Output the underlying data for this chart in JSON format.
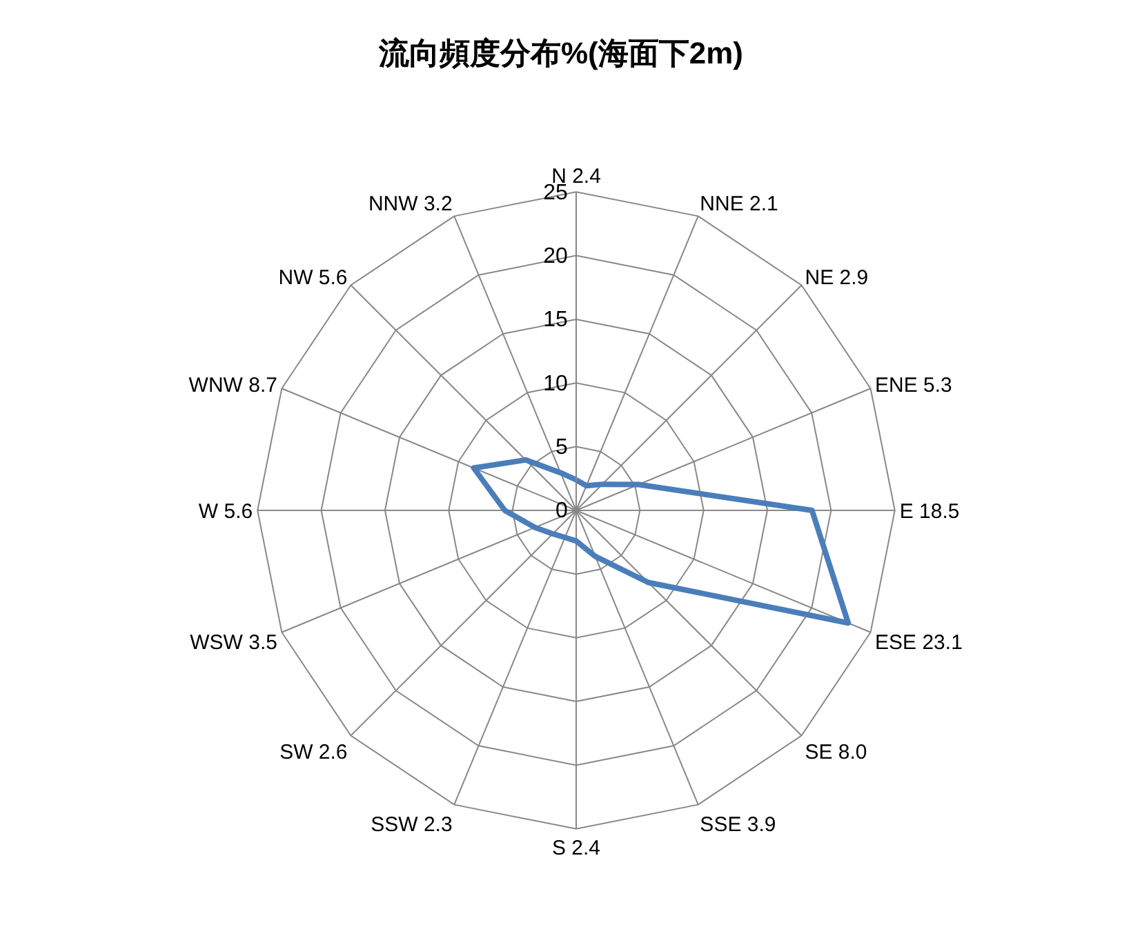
{
  "chart_data": {
    "type": "radar",
    "title": "流向頻度分布%(海面下2m)",
    "categories": [
      "N 2.4",
      "NNE 2.1",
      "NE 2.9",
      "ENE 5.3",
      "E 18.5",
      "ESE 23.1",
      "SE 8.0",
      "SSE 3.9",
      "S 2.4",
      "SSW 2.3",
      "SW 2.6",
      "WSW 3.5",
      "W 5.6",
      "WNW 8.7",
      "NW 5.6",
      "NNW 3.2"
    ],
    "series": [
      {
        "color": "#4a7ebb",
        "values": [
          2.4,
          2.1,
          2.9,
          5.3,
          18.5,
          23.1,
          8.0,
          3.9,
          2.4,
          2.3,
          2.6,
          3.5,
          5.6,
          8.7,
          5.6,
          3.2
        ]
      }
    ],
    "ylim": [
      0,
      25
    ],
    "yticks": [
      0,
      5,
      10,
      15,
      20,
      25
    ],
    "grid": true,
    "marker": "none",
    "line_style": "solid"
  }
}
